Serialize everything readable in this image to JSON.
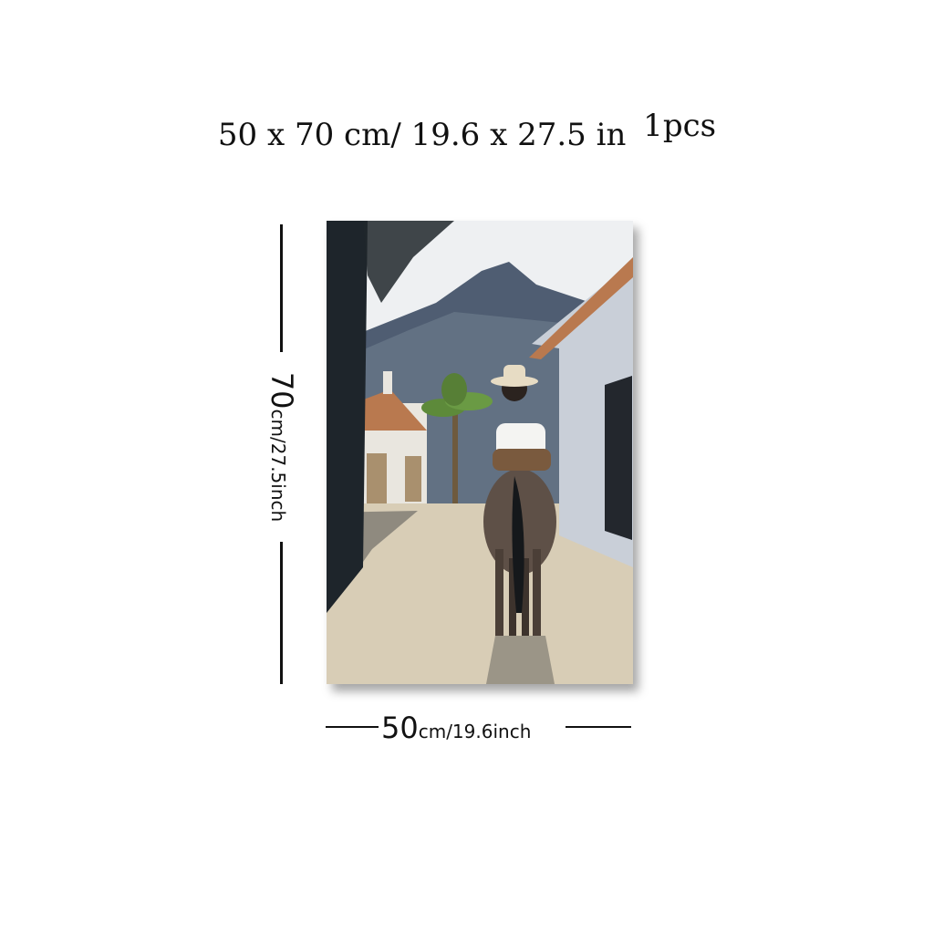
{
  "headline": {
    "main": "50 x 70 cm/ 19.6 x 27.5 in",
    "qty": "1",
    "qty_unit": "pcs"
  },
  "height_dimension": {
    "value": "70",
    "unit": "cm/27.5inch"
  },
  "width_dimension": {
    "value": "50",
    "unit": "cm/19.6inch"
  },
  "artwork": {
    "subject": "painting of a rider in a white hat on a horse walking down a village street toward a mountain",
    "colors": {
      "sky": "#eef0f2",
      "mountain": "#4f5d72",
      "road": "#d8cdb6",
      "wall": "#c9cfd8",
      "roof": "#b9794f"
    }
  }
}
